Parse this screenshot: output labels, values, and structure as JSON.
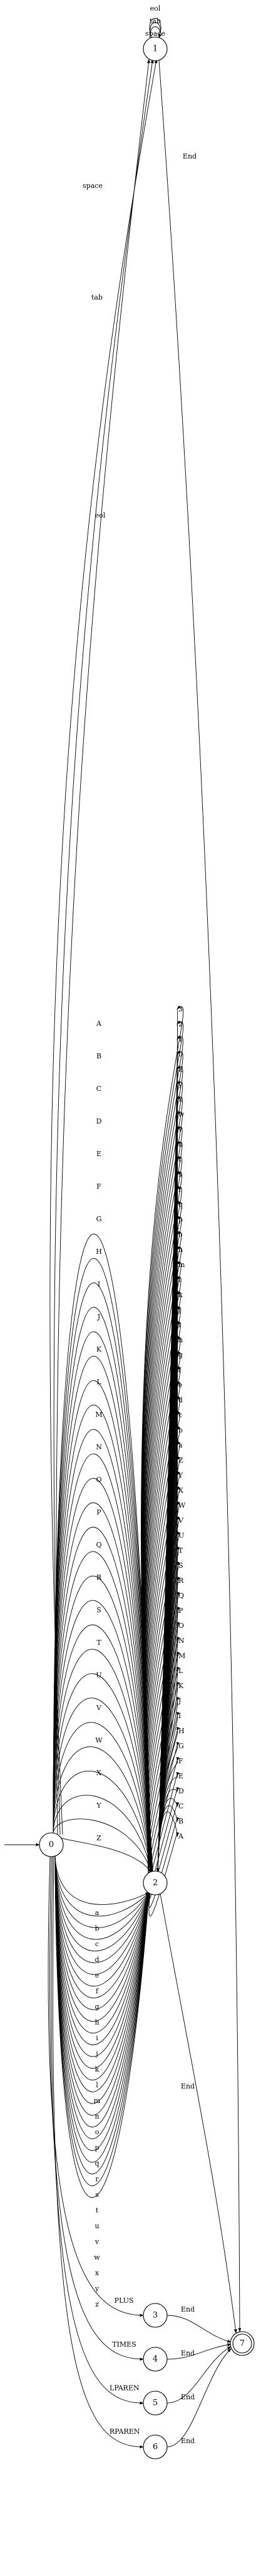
{
  "states": [
    {
      "id": "0",
      "label": "0",
      "start": true,
      "accepting": false
    },
    {
      "id": "1",
      "label": "1",
      "start": false,
      "accepting": false
    },
    {
      "id": "2",
      "label": "2",
      "start": false,
      "accepting": false
    },
    {
      "id": "3",
      "label": "3",
      "start": false,
      "accepting": false
    },
    {
      "id": "4",
      "label": "4",
      "start": false,
      "accepting": false
    },
    {
      "id": "5",
      "label": "5",
      "start": false,
      "accepting": false
    },
    {
      "id": "6",
      "label": "6",
      "start": false,
      "accepting": false
    },
    {
      "id": "7",
      "label": "7",
      "start": false,
      "accepting": true
    }
  ],
  "self_loops": {
    "state": "1",
    "labels": [
      "eol",
      "tab",
      "space"
    ]
  },
  "edges_0_to_1": [
    "space",
    "tab",
    "eol"
  ],
  "edges_0_to_2_upper": [
    "A",
    "B",
    "C",
    "D",
    "E",
    "F",
    "G",
    "H",
    "I",
    "J",
    "K",
    "L",
    "M",
    "N",
    "O",
    "P",
    "Q",
    "R",
    "S",
    "T",
    "U",
    "V",
    "W",
    "X",
    "Y",
    "Z"
  ],
  "edges_0_to_2_lower": [
    "a",
    "b",
    "c",
    "d",
    "e",
    "f",
    "g",
    "h",
    "i",
    "j",
    "k",
    "l",
    "m",
    "n",
    "o",
    "p",
    "q",
    "r",
    "s",
    "t",
    "u",
    "v",
    "w",
    "x",
    "y",
    "z"
  ],
  "edges_2_to_2": [
    "3",
    "2",
    "1",
    "0",
    "Z",
    "y",
    "x",
    "w",
    "v",
    "u",
    "t",
    "s",
    "r",
    "q",
    "p",
    "o",
    "n",
    "m",
    "l",
    "k",
    "j",
    "i",
    "h",
    "g",
    "f",
    "e",
    "d",
    "c",
    "b",
    "a",
    "Z",
    "Y",
    "X",
    "W",
    "V",
    "U",
    "T",
    "S",
    "R",
    "Q",
    "P",
    "O",
    "N",
    "M",
    "L",
    "K",
    "J",
    "I",
    "H",
    "G",
    "F",
    "E",
    "D",
    "C",
    "B",
    "A"
  ],
  "edges_0_to_ops": [
    {
      "label": "PLUS",
      "to": "3"
    },
    {
      "label": "TIMES",
      "to": "4"
    },
    {
      "label": "LPAREN",
      "to": "5"
    },
    {
      "label": "RPAREN",
      "to": "6"
    }
  ],
  "end_edges": [
    {
      "from": "1",
      "to": "7",
      "label": "End"
    },
    {
      "from": "2",
      "to": "7",
      "label": "End"
    },
    {
      "from": "3",
      "to": "7",
      "label": "End"
    },
    {
      "from": "4",
      "to": "7",
      "label": "End"
    },
    {
      "from": "5",
      "to": "7",
      "label": "End"
    },
    {
      "from": "6",
      "to": "7",
      "label": "End"
    }
  ]
}
